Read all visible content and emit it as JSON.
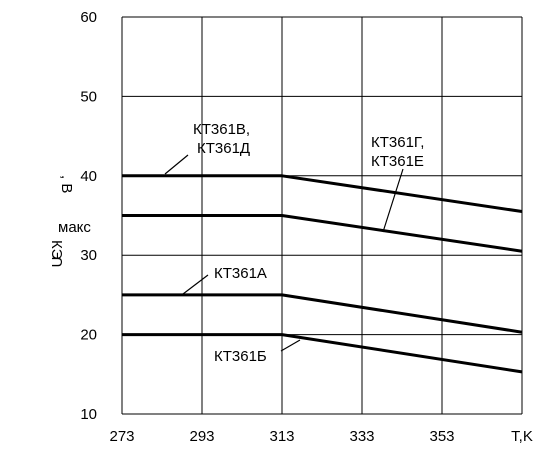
{
  "chart_data": {
    "type": "line",
    "x": [
      273,
      293,
      313,
      373
    ],
    "xticks": [
      "273",
      "293",
      "313",
      "333",
      "353",
      "T,K"
    ],
    "yticks": [
      "10",
      "20",
      "30",
      "40",
      "50",
      "60"
    ],
    "xlim": [
      273,
      373
    ],
    "ylim": [
      10,
      60
    ],
    "grid": true,
    "ylabel": {
      "symbol": "U",
      "subscript_1": "КЭ",
      "subscript_2": "макс",
      "unit": ", В"
    },
    "series": [
      {
        "values": [
          40,
          40,
          40,
          35.5
        ]
      },
      {
        "values": [
          35,
          35,
          35,
          30.5
        ]
      },
      {
        "values": [
          25,
          25,
          25,
          20.3
        ]
      },
      {
        "values": [
          20,
          20,
          20,
          15.3
        ]
      }
    ],
    "annotations": [
      {
        "lines": [
          "КТ361В,",
          "КТ361Д"
        ]
      },
      {
        "lines": [
          "КТ361Г,",
          "КТ361Е"
        ]
      },
      {
        "lines": [
          "КТ361А"
        ]
      },
      {
        "lines": [
          "КТ361Б"
        ]
      }
    ]
  }
}
